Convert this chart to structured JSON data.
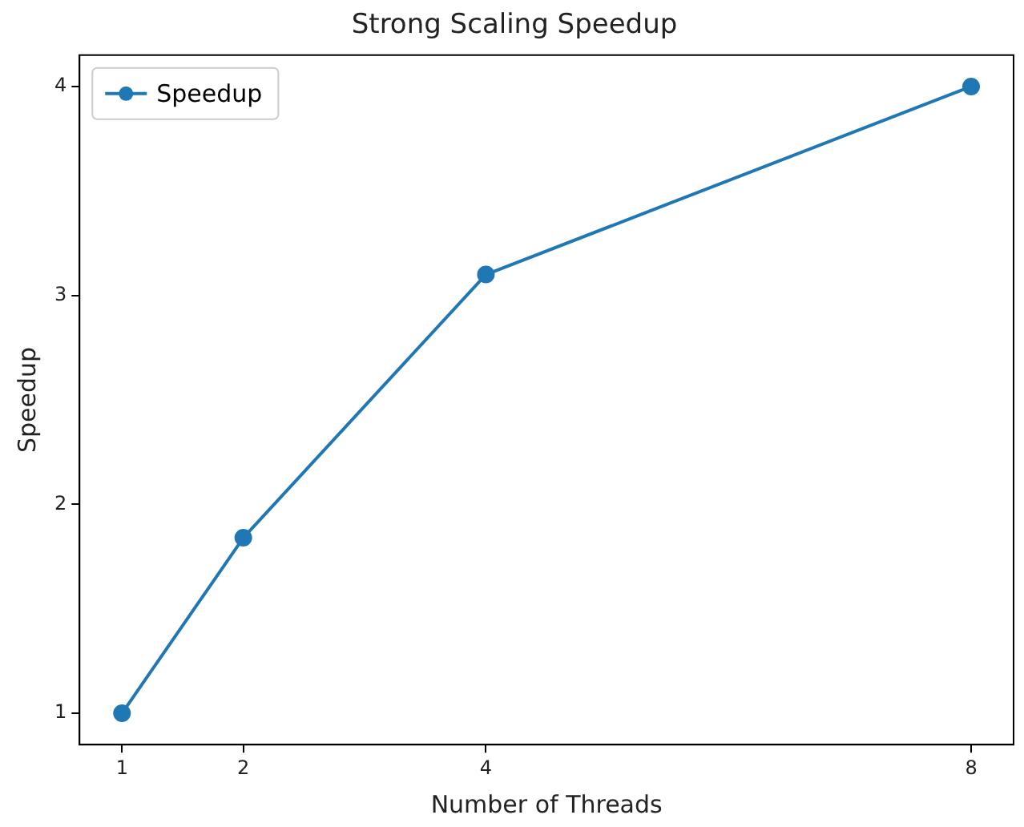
{
  "chart_data": {
    "type": "line",
    "title": "Strong Scaling Speedup",
    "xlabel": "Number of Threads",
    "ylabel": "Speedup",
    "x": [
      1,
      2,
      4,
      8
    ],
    "series": [
      {
        "name": "Speedup",
        "color": "#1f77b4",
        "values": [
          1,
          1.84,
          3.1,
          4
        ]
      }
    ],
    "xlim": [
      0.65,
      8.35
    ],
    "xticks": [
      1,
      2,
      4,
      8
    ],
    "ylim": [
      0.85,
      4.15
    ],
    "yticks": [
      1,
      2,
      3,
      4
    ],
    "grid": false,
    "legend": "top left",
    "marker": "circle",
    "line_style": "solid"
  }
}
